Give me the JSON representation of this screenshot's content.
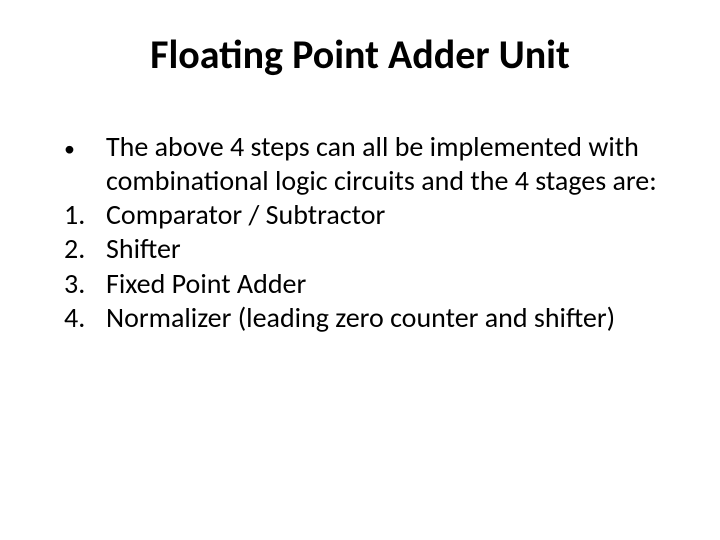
{
  "slide": {
    "title": "Floating Point Adder Unit",
    "title_fontsize": 40,
    "title_weight": 700,
    "body_fontsize": 28,
    "text_color": "#000000",
    "background_color": "#ffffff",
    "bullet": {
      "marker": "•",
      "text": "The above 4 steps can all be implemented with combinational logic circuits  and the 4 stages are:"
    },
    "numbered": [
      {
        "marker": "1.",
        "text": "Comparator / Subtractor"
      },
      {
        "marker": "2.",
        "text": "Shifter"
      },
      {
        "marker": "3.",
        "text": "Fixed Point Adder"
      },
      {
        "marker": "4.",
        "text": "Normalizer (leading zero counter and shifter)"
      }
    ]
  }
}
